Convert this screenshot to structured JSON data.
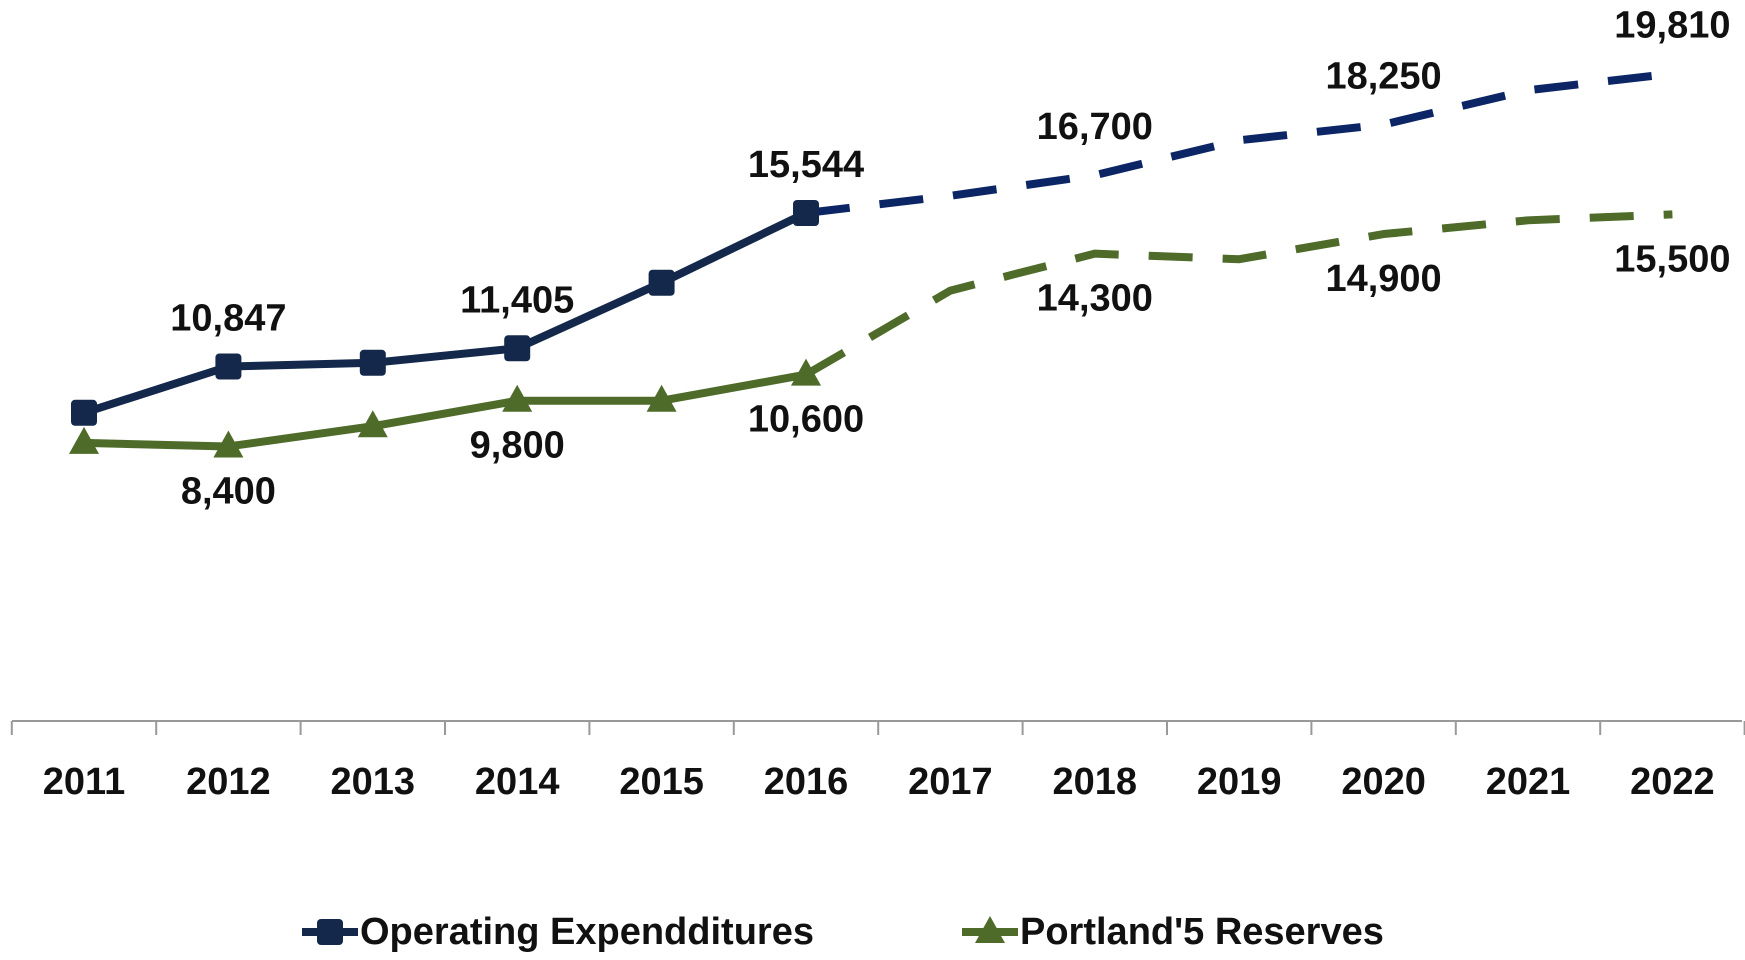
{
  "chart_data": {
    "type": "line",
    "categories": [
      "2011",
      "2012",
      "2013",
      "2014",
      "2015",
      "2016",
      "2017",
      "2018",
      "2019",
      "2020",
      "2021",
      "2022"
    ],
    "ylim": [
      0,
      22000
    ],
    "projection_start": 5,
    "series": [
      {
        "name": "Operating Expendditures",
        "color": "#14284b",
        "projection_color": "#0c2565",
        "marker": "square",
        "label_position": "above",
        "values": [
          9430,
          10847,
          10960,
          11405,
          13410,
          15544,
          16070,
          16700,
          17770,
          18250,
          19300,
          19810
        ],
        "value_labels": [
          null,
          "10,847",
          null,
          "11,405",
          null,
          "15,544",
          null,
          "16,700",
          null,
          "18,250",
          null,
          "19,810"
        ]
      },
      {
        "name": "Portland'5 Reserves",
        "color": "#4e6b2a",
        "projection_color": "#4e6b2a",
        "marker": "triangle",
        "label_position": "below",
        "values": [
          8510,
          8400,
          9020,
          9800,
          9800,
          10600,
          13170,
          14300,
          14130,
          14900,
          15320,
          15500
        ],
        "value_labels": [
          null,
          "8,400",
          null,
          "9,800",
          null,
          "10,600",
          null,
          "14,300",
          null,
          "14,900",
          null,
          "15,500"
        ]
      }
    ]
  }
}
